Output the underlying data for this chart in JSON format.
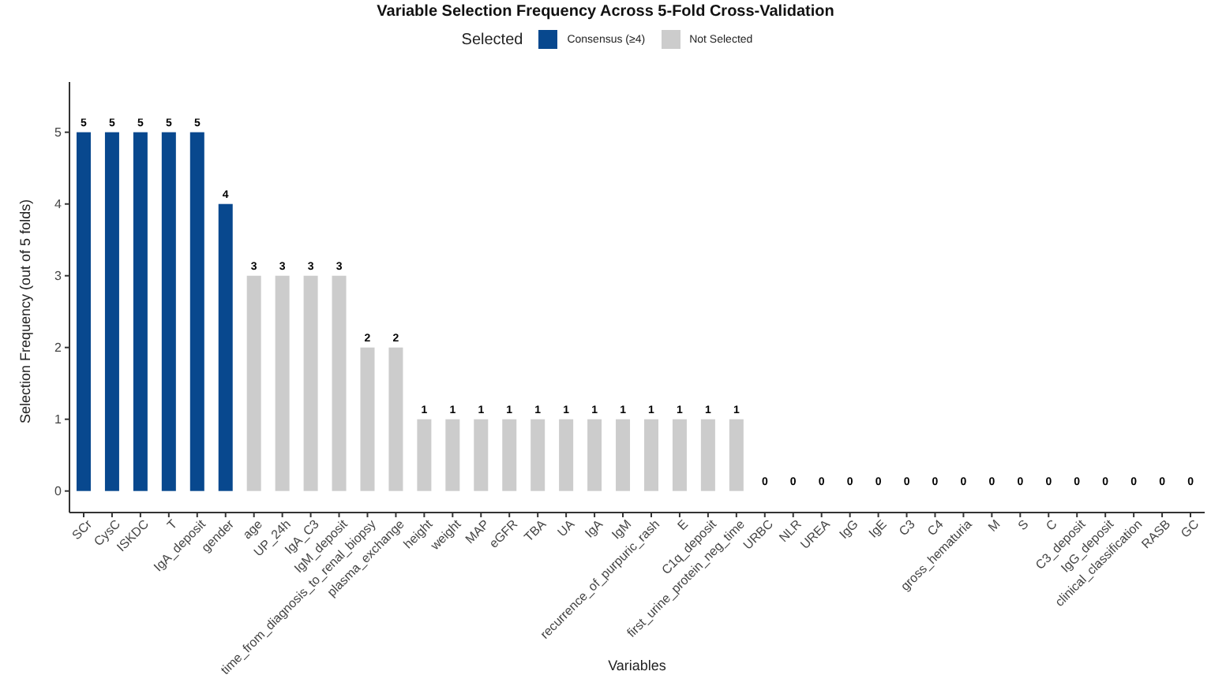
{
  "chart_data": {
    "type": "bar",
    "title": "Variable Selection Frequency Across 5-Fold Cross-Validation",
    "xlabel": "Variables",
    "ylabel": "Selection Frequency (out of 5 folds)",
    "legend_title": "Selected",
    "legend": "top",
    "categories": [
      "SCr",
      "CysC",
      "ISKDC",
      "T",
      "IgA_deposit",
      "gender",
      "age",
      "UP_24h",
      "IgA_C3",
      "IgM_deposit",
      "time_from_diagnosis_to_renal_biopsy",
      "plasma_exchange",
      "height",
      "weight",
      "MAP",
      "eGFR",
      "TBA",
      "UA",
      "IgA",
      "IgM",
      "recurrence_of_purpuric_rash",
      "E",
      "C1q_deposit",
      "first_urine_protein_neg_time",
      "URBC",
      "NLR",
      "UREA",
      "IgG",
      "IgE",
      "C3",
      "C4",
      "gross_hematuria",
      "M",
      "S",
      "C",
      "C3_deposit",
      "IgG_deposit",
      "clinical_classification",
      "RASB",
      "GC"
    ],
    "stacked": true,
    "series": [
      {
        "name": "Consensus (≥4)",
        "color": "#08488e",
        "values": [
          5,
          5,
          5,
          5,
          5,
          4,
          null,
          null,
          null,
          null,
          null,
          null,
          null,
          null,
          null,
          null,
          null,
          null,
          null,
          null,
          null,
          null,
          null,
          null,
          null,
          null,
          null,
          null,
          null,
          null,
          null,
          null,
          null,
          null,
          null,
          null,
          null,
          null,
          null,
          null
        ]
      },
      {
        "name": "Not Selected",
        "color": "#cccccc",
        "values": [
          null,
          null,
          null,
          null,
          null,
          null,
          3,
          3,
          3,
          3,
          2,
          2,
          1,
          1,
          1,
          1,
          1,
          1,
          1,
          1,
          1,
          1,
          1,
          1,
          0,
          0,
          0,
          0,
          0,
          0,
          0,
          0,
          0,
          0,
          0,
          0,
          0,
          0,
          0,
          0
        ]
      }
    ],
    "ylim": [
      -0.3,
      5.7
    ],
    "yticks": [
      0,
      1,
      2,
      3,
      4,
      5
    ],
    "grid": false,
    "data_labels": true
  }
}
